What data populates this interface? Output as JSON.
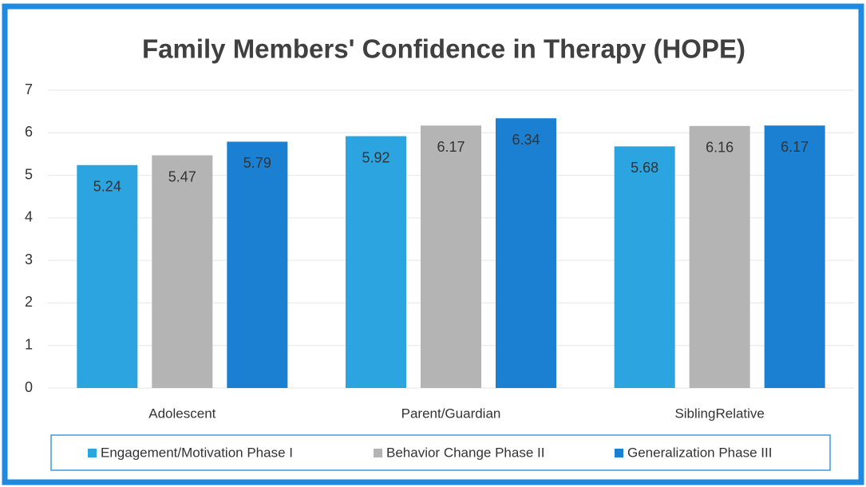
{
  "chart_data": {
    "type": "bar",
    "title": "Family Members' Confidence in Therapy (HOPE)",
    "categories": [
      "Adolescent",
      "Parent/Guardian",
      "SiblingRelative"
    ],
    "series": [
      {
        "name": "Engagement/Motivation Phase I",
        "color": "#2ba4df",
        "values": [
          5.24,
          5.92,
          5.68
        ]
      },
      {
        "name": "Behavior Change Phase II",
        "color": "#b4b4b4",
        "values": [
          5.47,
          6.17,
          6.16
        ]
      },
      {
        "name": "Generalization Phase III",
        "color": "#1b80d2",
        "values": [
          5.79,
          6.34,
          6.17
        ]
      }
    ],
    "ylim": [
      0,
      7
    ],
    "yticks": [
      0,
      1,
      2,
      3,
      4,
      5,
      6,
      7
    ],
    "grid": true,
    "legend": "bottom"
  }
}
